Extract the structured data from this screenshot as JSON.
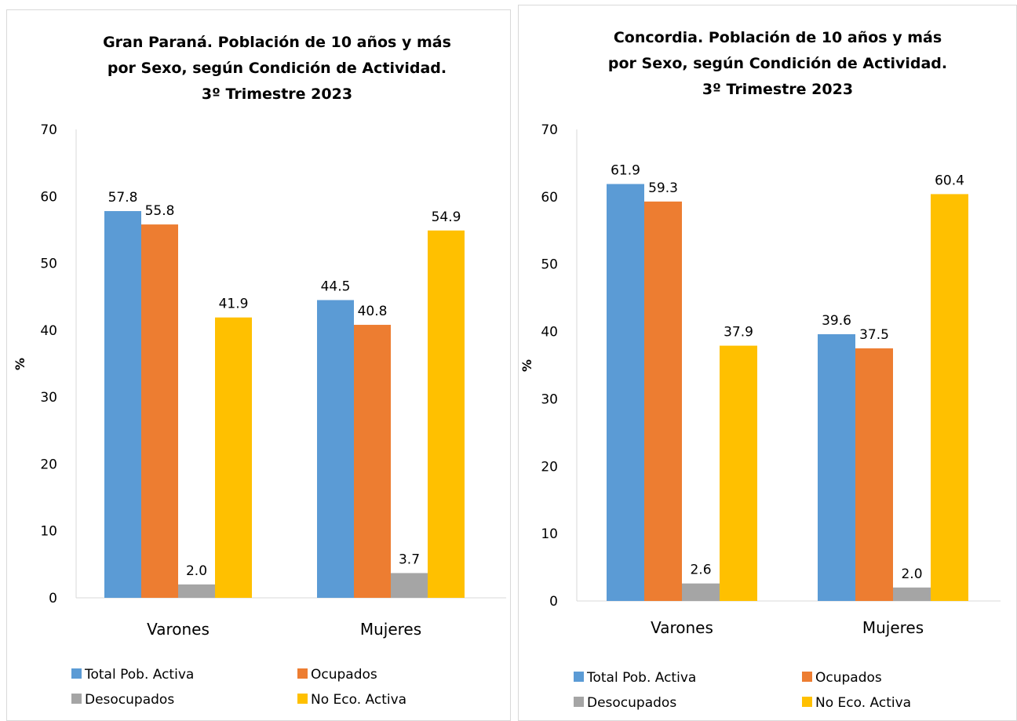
{
  "chart_data": [
    {
      "type": "bar",
      "title_lines": [
        "Gran Paraná. Población de 10 años y más",
        "por Sexo, según Condición de Actividad.",
        "3º Trimestre 2023"
      ],
      "ylabel": "%",
      "ylim": [
        0,
        70
      ],
      "yticks": [
        0,
        10,
        20,
        30,
        40,
        50,
        60,
        70
      ],
      "categories": [
        "Varones",
        "Mujeres"
      ],
      "series": [
        {
          "name": "Total Pob. Activa",
          "color": "#5B9BD5",
          "values": [
            57.8,
            44.5
          ]
        },
        {
          "name": "Ocupados",
          "color": "#ED7D31",
          "values": [
            55.8,
            40.8
          ]
        },
        {
          "name": "Desocupados",
          "color": "#A5A5A5",
          "values": [
            2.0,
            3.7
          ]
        },
        {
          "name": "No Eco. Activa",
          "color": "#FFC000",
          "values": [
            41.9,
            54.9
          ]
        }
      ],
      "data_labels": [
        [
          "57.8",
          "44.5"
        ],
        [
          "55.8",
          "40.8"
        ],
        [
          "2.0",
          "3.7"
        ],
        [
          "41.9",
          "54.9"
        ]
      ],
      "grid": false,
      "legend_position": "bottom"
    },
    {
      "type": "bar",
      "title_lines": [
        "Concordia. Población de 10 años y más",
        "por Sexo, según Condición de Actividad.",
        "3º Trimestre 2023"
      ],
      "ylabel": "%",
      "ylim": [
        0,
        70
      ],
      "yticks": [
        0,
        10,
        20,
        30,
        40,
        50,
        60,
        70
      ],
      "categories": [
        "Varones",
        "Mujeres"
      ],
      "series": [
        {
          "name": "Total Pob. Activa",
          "color": "#5B9BD5",
          "values": [
            61.9,
            39.6
          ]
        },
        {
          "name": "Ocupados",
          "color": "#ED7D31",
          "values": [
            59.3,
            37.5
          ]
        },
        {
          "name": "Desocupados",
          "color": "#A5A5A5",
          "values": [
            2.6,
            2.0
          ]
        },
        {
          "name": "No Eco. Activa",
          "color": "#FFC000",
          "values": [
            37.9,
            60.4
          ]
        }
      ],
      "data_labels": [
        [
          "61.9",
          "39.6"
        ],
        [
          "59.3",
          "37.5"
        ],
        [
          "2.6",
          "2.0"
        ],
        [
          "37.9",
          "60.4"
        ]
      ],
      "grid": false,
      "legend_position": "bottom"
    }
  ]
}
